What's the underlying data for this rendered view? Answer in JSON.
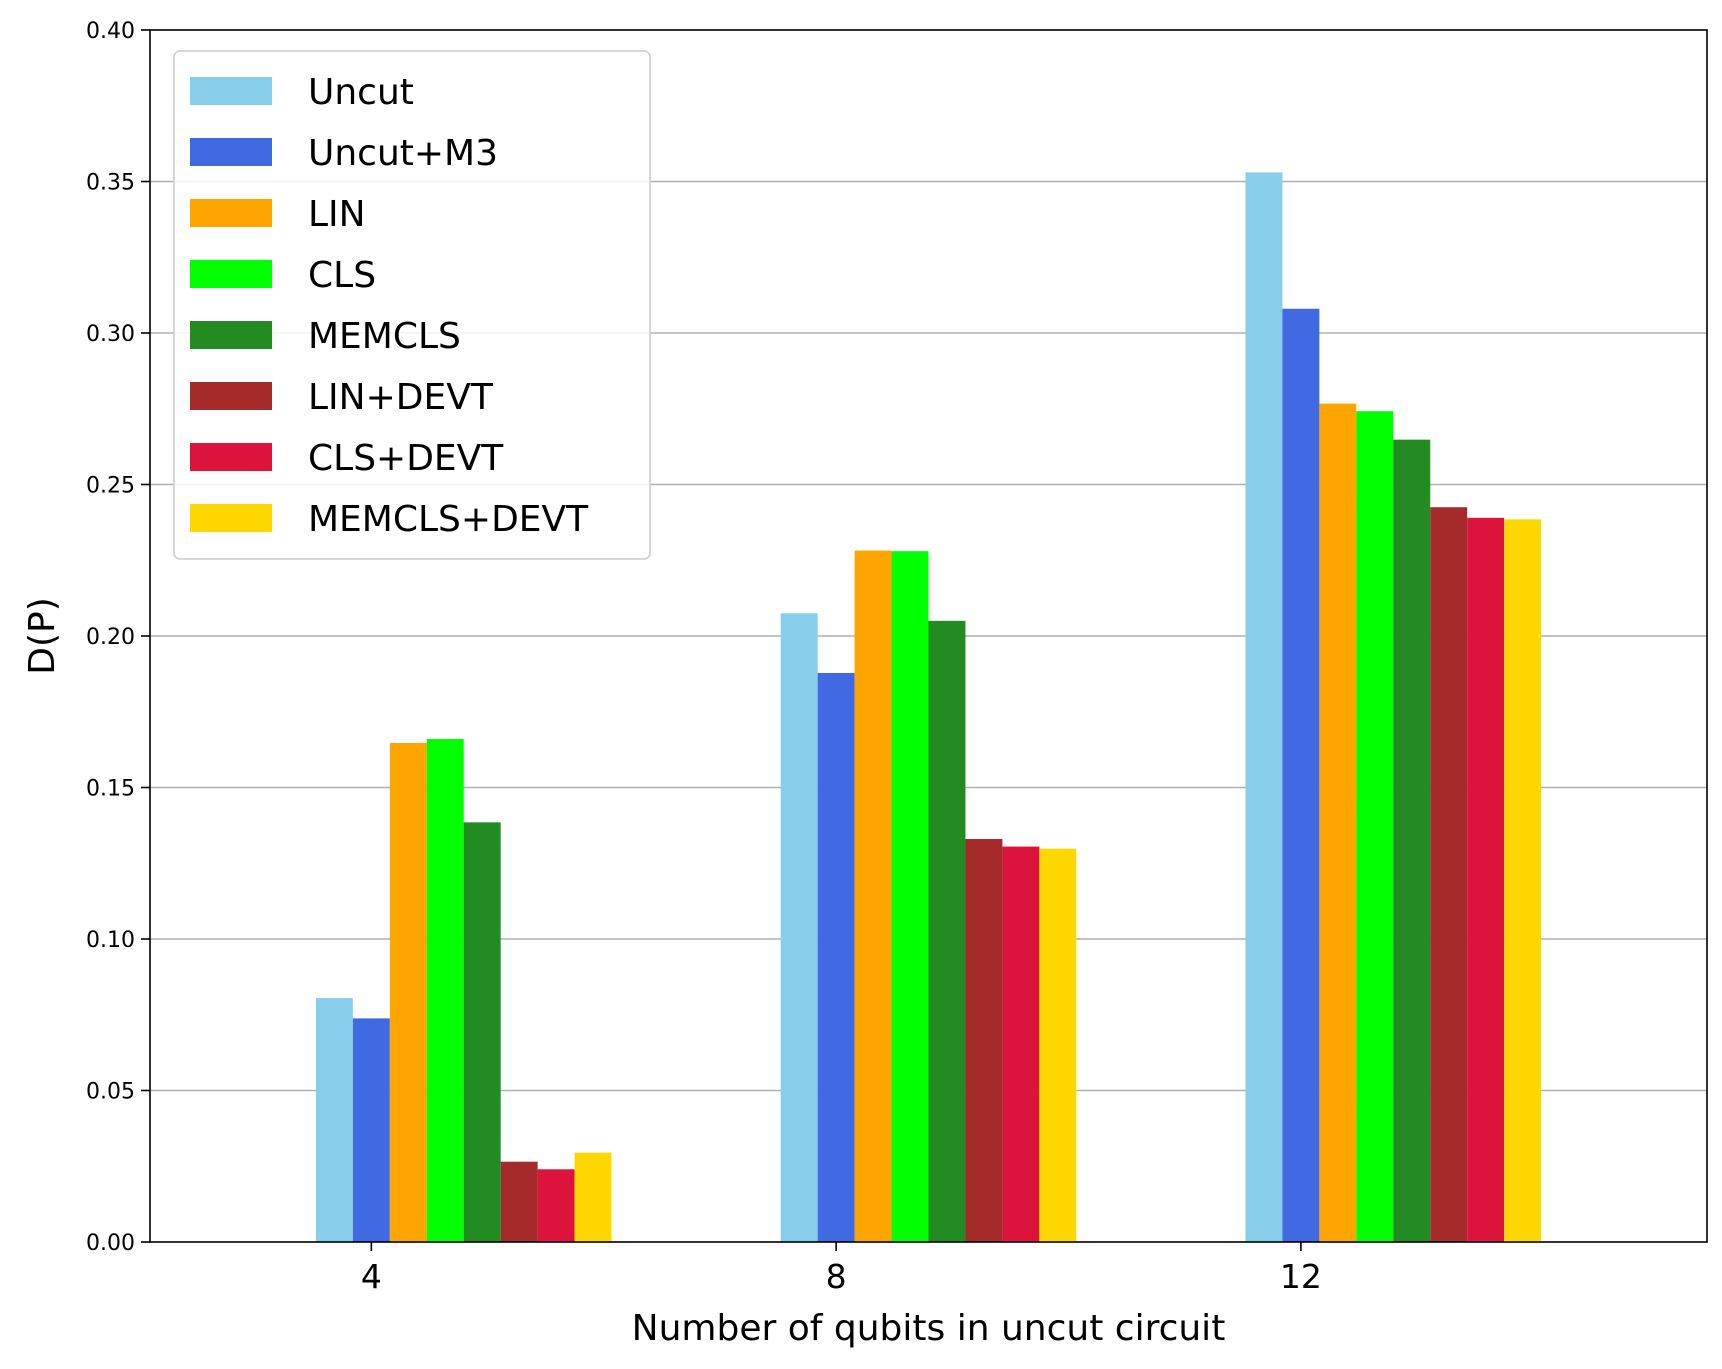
{
  "chart_data": {
    "type": "bar",
    "title": "",
    "xlabel": "Number of qubits in uncut circuit",
    "ylabel": "D(P)",
    "categories": [
      "4",
      "8",
      "12"
    ],
    "ylim": [
      0,
      0.4
    ],
    "yticks": [
      "0.00",
      "0.05",
      "0.10",
      "0.15",
      "0.20",
      "0.25",
      "0.30",
      "0.35",
      "0.40"
    ],
    "grid": "y-major",
    "legend_position": "top-left",
    "series": [
      {
        "name": "Uncut",
        "color": "#87CEEB",
        "values": [
          0.0805,
          0.2075,
          0.353
        ]
      },
      {
        "name": "Uncut+M3",
        "color": "#4169E1",
        "values": [
          0.0738,
          0.1878,
          0.308
        ]
      },
      {
        "name": "LIN",
        "color": "#FFA500",
        "values": [
          0.1647,
          0.2282,
          0.2767
        ]
      },
      {
        "name": "CLS",
        "color": "#00FF00",
        "values": [
          0.166,
          0.228,
          0.2742
        ]
      },
      {
        "name": "MEMCLS",
        "color": "#228B22",
        "values": [
          0.1385,
          0.205,
          0.2648
        ]
      },
      {
        "name": "LIN+DEVT",
        "color": "#A52A2A",
        "values": [
          0.0265,
          0.133,
          0.2425
        ]
      },
      {
        "name": "CLS+DEVT",
        "color": "#DC143C",
        "values": [
          0.024,
          0.1305,
          0.239
        ]
      },
      {
        "name": "MEMCLS+DEVT",
        "color": "#FFD700",
        "values": [
          0.0295,
          0.1298,
          0.2385
        ]
      }
    ]
  }
}
